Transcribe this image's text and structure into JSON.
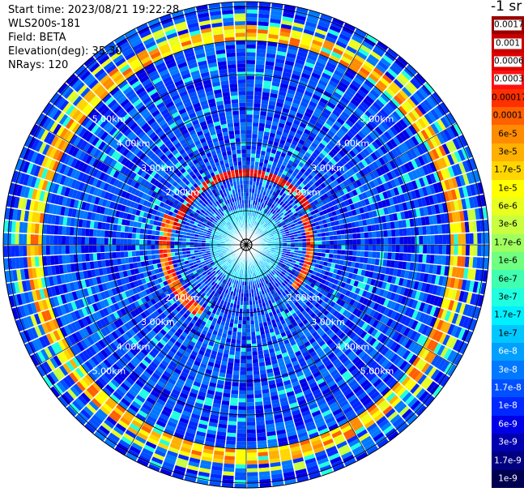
{
  "info": {
    "start_time": "Start time: 2023/08/21 19:22:28",
    "instrument": "WLS200s-181",
    "field": "Field: BETA",
    "elevation": "Elevation(deg): 35.30",
    "nrays": "NRays: 120"
  },
  "range_rings": {
    "unit": "km",
    "labels": [
      "2.00km",
      "3.00km",
      "4.00km",
      "5.00km"
    ]
  },
  "colorbar": {
    "title": "-1 sr",
    "entries": [
      {
        "label": "0.0017",
        "color": "#9a0000"
      },
      {
        "label": "0.001",
        "color": "#c80000"
      },
      {
        "label": "0.0006",
        "color": "#e00000"
      },
      {
        "label": "0.0003",
        "color": "#ff1010"
      },
      {
        "label": "0.00017",
        "color": "#ff3000"
      },
      {
        "label": "0.0001",
        "color": "#ff6000"
      },
      {
        "label": "6e-5",
        "color": "#ff8c00"
      },
      {
        "label": "3e-5",
        "color": "#ffb000"
      },
      {
        "label": "1.7e-5",
        "color": "#ffd600"
      },
      {
        "label": "1e-5",
        "color": "#ffff00"
      },
      {
        "label": "6e-6",
        "color": "#e8ff20"
      },
      {
        "label": "3e-6",
        "color": "#c8ff40"
      },
      {
        "label": "1.7e-6",
        "color": "#a0ff60"
      },
      {
        "label": "1e-6",
        "color": "#70ff80"
      },
      {
        "label": "6e-7",
        "color": "#40ffb0"
      },
      {
        "label": "3e-7",
        "color": "#20ffe0"
      },
      {
        "label": "1.7e-7",
        "color": "#00f0ff"
      },
      {
        "label": "1e-7",
        "color": "#00c8ff"
      },
      {
        "label": "6e-8",
        "color": "#00a0ff"
      },
      {
        "label": "3e-8",
        "color": "#0078ff"
      },
      {
        "label": "1.7e-8",
        "color": "#0050ff"
      },
      {
        "label": "1e-8",
        "color": "#0028ff"
      },
      {
        "label": "6e-9",
        "color": "#0000e8"
      },
      {
        "label": "3e-9",
        "color": "#0000b0"
      },
      {
        "label": "1.7e-9",
        "color": "#000080"
      },
      {
        "label": "1e-9",
        "color": "#000050"
      }
    ]
  }
}
